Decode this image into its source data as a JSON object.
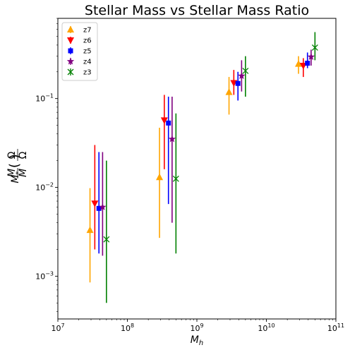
{
  "chart_data": {
    "type": "scatter",
    "title": "Stellar Mass vs Stellar Mass Ratio",
    "xlabel": "M_h",
    "ylabel": "M*/M_h (Ω_M/Ω_b)",
    "xscale": "log",
    "yscale": "log",
    "xlim": [
      10000000.0,
      100000000000.0
    ],
    "ylim": [
      0.00033,
      0.8
    ],
    "grid": false,
    "legend_position": "top-left",
    "x_ticks": [
      {
        "value": 10000000.0,
        "base": "10",
        "exp": "7"
      },
      {
        "value": 100000000.0,
        "base": "10",
        "exp": "8"
      },
      {
        "value": 1000000000.0,
        "base": "10",
        "exp": "9"
      },
      {
        "value": 10000000000.0,
        "base": "10",
        "exp": "10"
      },
      {
        "value": 100000000000.0,
        "base": "10",
        "exp": "11"
      }
    ],
    "y_ticks": [
      {
        "value": 0.001,
        "base": "10",
        "exp": "−3"
      },
      {
        "value": 0.01,
        "base": "10",
        "exp": "−2"
      },
      {
        "value": 0.1,
        "base": "10",
        "exp": "−1"
      }
    ],
    "series": [
      {
        "name": "z7",
        "color": "#ffa500",
        "marker": "triangle-up",
        "points": [
          {
            "x": 29000000.0,
            "y": 0.0033,
            "ylow": 0.00085,
            "yhigh": 0.0098
          },
          {
            "x": 290000000.0,
            "y": 0.013,
            "ylow": 0.0027,
            "yhigh": 0.047
          },
          {
            "x": 2900000000.0,
            "y": 0.118,
            "ylow": 0.066,
            "yhigh": 0.175
          },
          {
            "x": 29000000000.0,
            "y": 0.245,
            "ylow": 0.19,
            "yhigh": 0.3
          }
        ]
      },
      {
        "name": "z6",
        "color": "#ff0000",
        "marker": "triangle-down",
        "points": [
          {
            "x": 34000000.0,
            "y": 0.0066,
            "ylow": 0.002,
            "yhigh": 0.03
          },
          {
            "x": 340000000.0,
            "y": 0.057,
            "ylow": 0.016,
            "yhigh": 0.11
          },
          {
            "x": 3400000000.0,
            "y": 0.15,
            "ylow": 0.11,
            "yhigh": 0.21
          },
          {
            "x": 34000000000.0,
            "y": 0.235,
            "ylow": 0.175,
            "yhigh": 0.285
          }
        ]
      },
      {
        "name": "z5",
        "color": "#0000ff",
        "marker": "square",
        "points": [
          {
            "x": 39000000.0,
            "y": 0.0058,
            "ylow": 0.0018,
            "yhigh": 0.025
          },
          {
            "x": 390000000.0,
            "y": 0.053,
            "ylow": 0.0065,
            "yhigh": 0.105
          },
          {
            "x": 3900000000.0,
            "y": 0.148,
            "ylow": 0.095,
            "yhigh": 0.2
          },
          {
            "x": 39000000000.0,
            "y": 0.25,
            "ylow": 0.22,
            "yhigh": 0.33
          }
        ]
      },
      {
        "name": "z4",
        "color": "#800080",
        "marker": "star",
        "points": [
          {
            "x": 44000000.0,
            "y": 0.006,
            "ylow": 0.0017,
            "yhigh": 0.025
          },
          {
            "x": 440000000.0,
            "y": 0.035,
            "ylow": 0.004,
            "yhigh": 0.105
          },
          {
            "x": 4400000000.0,
            "y": 0.18,
            "ylow": 0.12,
            "yhigh": 0.27
          },
          {
            "x": 44000000000.0,
            "y": 0.295,
            "ylow": 0.235,
            "yhigh": 0.355
          }
        ]
      },
      {
        "name": "z3",
        "color": "#008000",
        "marker": "x",
        "points": [
          {
            "x": 50000000.0,
            "y": 0.0026,
            "ylow": 0.0005,
            "yhigh": 0.02
          },
          {
            "x": 500000000.0,
            "y": 0.0125,
            "ylow": 0.0018,
            "yhigh": 0.068
          },
          {
            "x": 5000000000.0,
            "y": 0.205,
            "ylow": 0.105,
            "yhigh": 0.3
          },
          {
            "x": 50000000000.0,
            "y": 0.375,
            "ylow": 0.27,
            "yhigh": 0.56
          }
        ]
      }
    ]
  }
}
